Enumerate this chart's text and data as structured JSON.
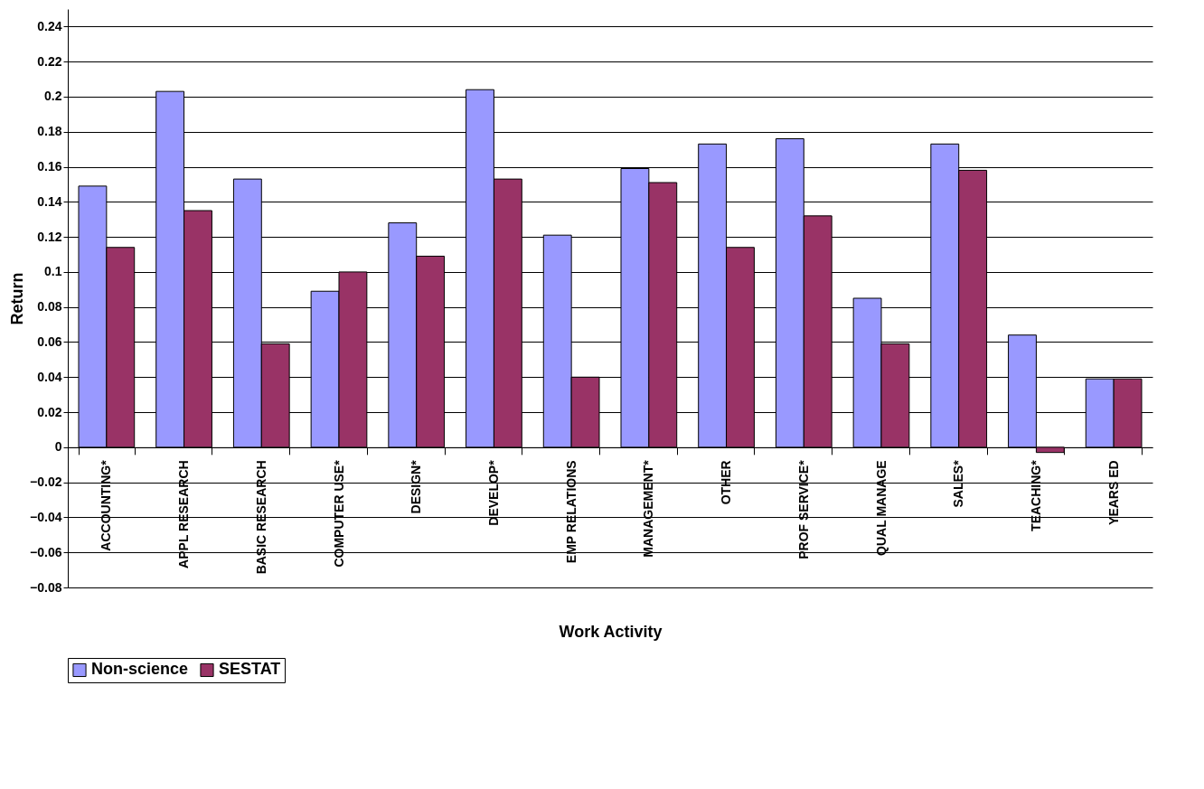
{
  "chart_data": {
    "type": "bar",
    "xlabel": "Work Activity",
    "ylabel": "Return",
    "categories": [
      "ACCOUNTING*",
      "APPL RESEARCH",
      "BASIC RESEARCH",
      "COMPUTER USE*",
      "DESIGN*",
      "DEVELOP*",
      "EMP RELATIONS",
      "MANAGEMENT*",
      "OTHER",
      "PROF SERVICE*",
      "QUAL MANAGE",
      "SALES*",
      "TEACHING*",
      "YEARS ED"
    ],
    "series": [
      {
        "name": "Non-science",
        "color": "#9999ff",
        "values": [
          0.149,
          0.203,
          0.153,
          0.089,
          0.128,
          0.204,
          0.121,
          0.159,
          0.173,
          0.176,
          0.085,
          0.173,
          0.064,
          0.039
        ]
      },
      {
        "name": "SESTAT",
        "color": "#993366",
        "values": [
          0.114,
          0.135,
          0.059,
          0.1,
          0.109,
          0.153,
          0.04,
          0.151,
          0.114,
          0.132,
          0.059,
          0.158,
          -0.003,
          0.039
        ]
      }
    ],
    "ylim": [
      -0.08,
      0.25
    ],
    "yticks": [
      -0.08,
      -0.06,
      -0.04,
      -0.02,
      0,
      0.02,
      0.04,
      0.06,
      0.08,
      0.1,
      0.12,
      0.14,
      0.16,
      0.18,
      0.2,
      0.22,
      0.24
    ],
    "grid": "y",
    "legend": "bottom"
  }
}
